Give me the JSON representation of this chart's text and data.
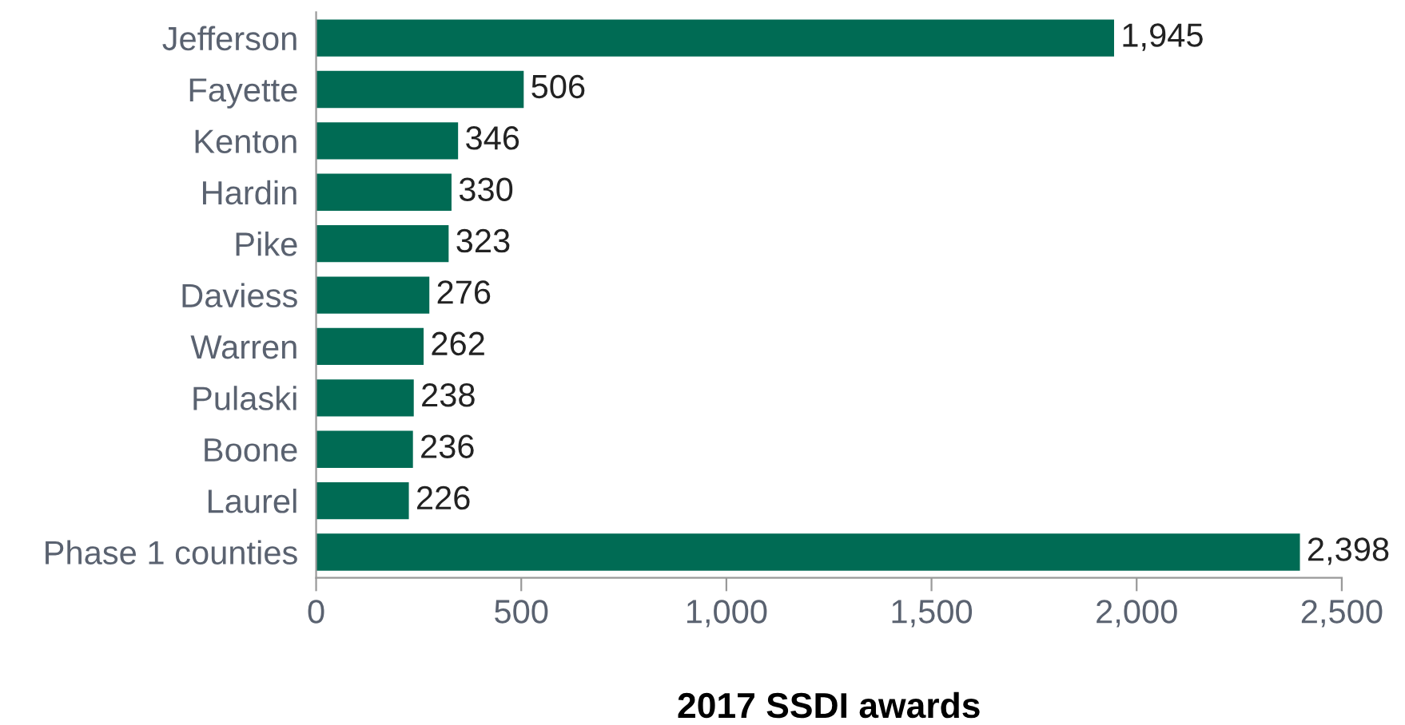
{
  "chart_data": {
    "type": "bar",
    "orientation": "horizontal",
    "xlabel": "2017 SSDI awards",
    "categories": [
      "Jefferson",
      "Fayette",
      "Kenton",
      "Hardin",
      "Pike",
      "Daviess",
      "Warren",
      "Pulaski",
      "Boone",
      "Laurel",
      "Phase 1 counties"
    ],
    "values": [
      1945,
      506,
      346,
      330,
      323,
      276,
      262,
      238,
      236,
      226,
      2398
    ],
    "value_labels": [
      "1,945",
      "506",
      "346",
      "330",
      "323",
      "276",
      "262",
      "238",
      "236",
      "226",
      "2,398"
    ],
    "color": "#006b54",
    "xlim": [
      0,
      2500
    ],
    "xticks": [
      0,
      500,
      {
        "value": 1000,
        "label": "1,000"
      },
      {
        "value": 1500,
        "label": "1,500"
      },
      {
        "value": 2000,
        "label": "2,000"
      },
      {
        "value": 2500,
        "label": "2,500"
      }
    ],
    "grid": false,
    "legend": false
  }
}
